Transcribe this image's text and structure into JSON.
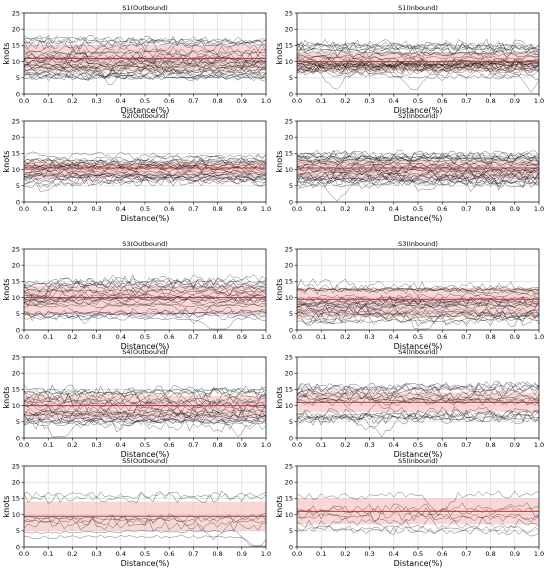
{
  "figure": {
    "panels": 10,
    "layout": "5 rows x 2 columns",
    "band_color": "#f4b7b7",
    "line_color": "#000000",
    "mean_color": "#b23a3a"
  },
  "chart_data": [
    {
      "type": "line",
      "title": "S1(Outbound)",
      "xlabel": "Distance(%)",
      "ylabel": "knots",
      "xlim": [
        0,
        1
      ],
      "ylim": [
        0,
        25
      ],
      "grid": true,
      "xticks": [
        "0.0",
        "0.1",
        "0.2",
        "0.3",
        "0.4",
        "0.5",
        "0.6",
        "0.7",
        "0.8",
        "0.9",
        "1.0"
      ],
      "yticks": [
        "0",
        "5",
        "10",
        "15",
        "20",
        "25"
      ],
      "band": {
        "lower": 7,
        "upper": 15
      },
      "mean": 11,
      "line_count": 30
    },
    {
      "type": "line",
      "title": "S1(Inbound)",
      "xlabel": "Distance(%)",
      "ylabel": "knots",
      "xlim": [
        0,
        1
      ],
      "ylim": [
        0,
        25
      ],
      "grid": true,
      "xticks": [
        "0.0",
        "0.1",
        "0.2",
        "0.3",
        "0.4",
        "0.5",
        "0.6",
        "0.7",
        "0.8",
        "0.9",
        "1.0"
      ],
      "yticks": [
        "0",
        "5",
        "10",
        "15",
        "20",
        "25"
      ],
      "band": {
        "lower": 7,
        "upper": 13
      },
      "mean": 10,
      "line_count": 30
    },
    {
      "type": "line",
      "title": "S2(Outbound)",
      "xlabel": "Distance(%)",
      "ylabel": "knots",
      "xlim": [
        0,
        1
      ],
      "ylim": [
        0,
        25
      ],
      "grid": true,
      "xticks": [
        "0.0",
        "0.1",
        "0.2",
        "0.3",
        "0.4",
        "0.5",
        "0.6",
        "0.7",
        "0.8",
        "0.9",
        "1.0"
      ],
      "yticks": [
        "0",
        "5",
        "10",
        "15",
        "20",
        "25"
      ],
      "band": {
        "lower": 7.5,
        "upper": 12.5
      },
      "mean": 10.5,
      "line_count": 25
    },
    {
      "type": "line",
      "title": "S2(Inbound)",
      "xlabel": "Distance(%)",
      "ylabel": "knots",
      "xlim": [
        0,
        1
      ],
      "ylim": [
        0,
        25
      ],
      "grid": true,
      "xticks": [
        "0.0",
        "0.1",
        "0.2",
        "0.3",
        "0.4",
        "0.5",
        "0.6",
        "0.7",
        "0.8",
        "0.9",
        "1.0"
      ],
      "yticks": [
        "0",
        "5",
        "10",
        "15",
        "20",
        "25"
      ],
      "band": {
        "lower": 7,
        "upper": 13
      },
      "mean": 10.5,
      "line_count": 30
    },
    {
      "type": "line",
      "title": "S3(Outbound)",
      "xlabel": "Distance(%)",
      "ylabel": "knots",
      "xlim": [
        0,
        1
      ],
      "ylim": [
        0,
        25
      ],
      "grid": true,
      "xticks": [
        "0.0",
        "0.1",
        "0.2",
        "0.3",
        "0.4",
        "0.5",
        "0.6",
        "0.7",
        "0.8",
        "0.9",
        "1.0"
      ],
      "yticks": [
        "0",
        "5",
        "10",
        "15",
        "20",
        "25"
      ],
      "band": {
        "lower": 5,
        "upper": 13.5
      },
      "mean": 10,
      "line_count": 25
    },
    {
      "type": "line",
      "title": "S3(Inbound)",
      "xlabel": "Distance(%)",
      "ylabel": "knots",
      "xlim": [
        0,
        1
      ],
      "ylim": [
        0,
        25
      ],
      "grid": true,
      "xticks": [
        "0.0",
        "0.1",
        "0.2",
        "0.3",
        "0.4",
        "0.5",
        "0.6",
        "0.7",
        "0.8",
        "0.9",
        "1.0"
      ],
      "yticks": [
        "0",
        "5",
        "10",
        "15",
        "20",
        "25"
      ],
      "band": {
        "lower": 4,
        "upper": 13
      },
      "mean": 9.5,
      "line_count": 25
    },
    {
      "type": "line",
      "title": "S4(Outbound)",
      "xlabel": "Distance(%)",
      "ylabel": "knots",
      "xlim": [
        0,
        1
      ],
      "ylim": [
        0,
        25
      ],
      "grid": true,
      "xticks": [
        "0.0",
        "0.1",
        "0.2",
        "0.3",
        "0.4",
        "0.5",
        "0.6",
        "0.7",
        "0.8",
        "0.9",
        "1.0"
      ],
      "yticks": [
        "0",
        "5",
        "10",
        "15",
        "20",
        "25"
      ],
      "band": {
        "lower": 6,
        "upper": 13
      },
      "mean": 10,
      "line_count": 25
    },
    {
      "type": "line",
      "title": "S4(Inbound)",
      "xlabel": "Distance(%)",
      "ylabel": "knots",
      "xlim": [
        0,
        1
      ],
      "ylim": [
        0,
        25
      ],
      "grid": true,
      "xticks": [
        "0.0",
        "0.1",
        "0.2",
        "0.3",
        "0.4",
        "0.5",
        "0.6",
        "0.7",
        "0.8",
        "0.9",
        "1.0"
      ],
      "yticks": [
        "0",
        "5",
        "10",
        "15",
        "20",
        "25"
      ],
      "band": {
        "lower": 8,
        "upper": 14
      },
      "mean": 11,
      "line_count": 20
    },
    {
      "type": "line",
      "title": "S5(Outbound)",
      "xlabel": "Distance(%)",
      "ylabel": "knots",
      "xlim": [
        0,
        1
      ],
      "ylim": [
        0,
        25
      ],
      "grid": true,
      "xticks": [
        "0.0",
        "0.1",
        "0.2",
        "0.3",
        "0.4",
        "0.5",
        "0.6",
        "0.7",
        "0.8",
        "0.9",
        "1.0"
      ],
      "yticks": [
        "0",
        "5",
        "10",
        "15",
        "20",
        "25"
      ],
      "band": {
        "lower": 5,
        "upper": 14
      },
      "mean": 9.5,
      "line_count": 8
    },
    {
      "type": "line",
      "title": "S5(Inbound)",
      "xlabel": "Distance(%)",
      "ylabel": "knots",
      "xlim": [
        0,
        1
      ],
      "ylim": [
        0,
        25
      ],
      "grid": true,
      "xticks": [
        "0.0",
        "0.1",
        "0.2",
        "0.3",
        "0.4",
        "0.5",
        "0.6",
        "0.7",
        "0.8",
        "0.9",
        "1.0"
      ],
      "yticks": [
        "0",
        "5",
        "10",
        "15",
        "20",
        "25"
      ],
      "band": {
        "lower": 7,
        "upper": 15
      },
      "mean": 11,
      "line_count": 8
    }
  ]
}
